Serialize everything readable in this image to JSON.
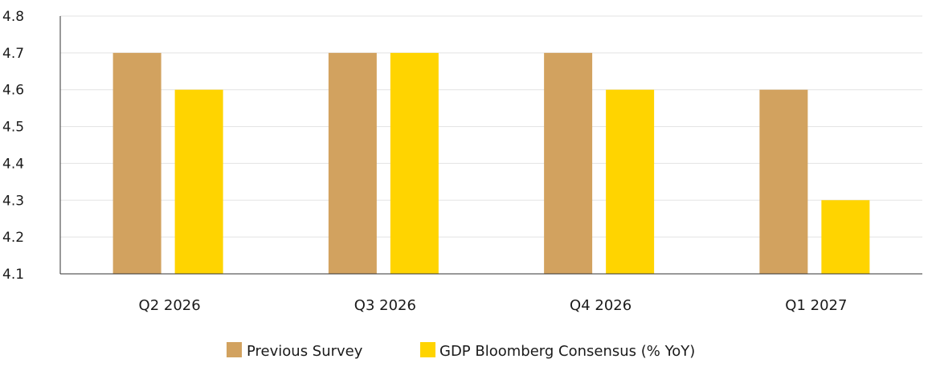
{
  "chart_data": {
    "type": "bar",
    "title": "",
    "xlabel": "",
    "ylabel": "",
    "categories": [
      "Q2 2026",
      "Q3 2026",
      "Q4 2026",
      "Q1 2027"
    ],
    "series": [
      {
        "name": "Previous Survey",
        "values": [
          4.7,
          4.7,
          4.7,
          4.6
        ]
      },
      {
        "name": "GDP Bloomberg Consensus (% YoY)",
        "values": [
          4.6,
          4.7,
          4.6,
          4.3
        ]
      }
    ],
    "ylim": [
      4.1,
      4.8
    ],
    "yticks": [
      "4.1",
      "4.2",
      "4.3",
      "4.4",
      "4.5",
      "4.6",
      "4.7",
      "4.8"
    ],
    "grid": true,
    "legend_position": "bottom",
    "colors": {
      "series": [
        "#D2A25F",
        "#FFD400"
      ],
      "grid": "#e3e3e3",
      "axis": "#333333"
    }
  }
}
